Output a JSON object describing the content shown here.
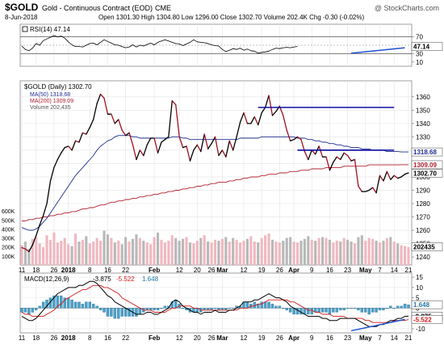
{
  "header": {
    "symbol": "$GOLD",
    "name": "Gold - Continuous Contract (EOD)",
    "exchange": "CME",
    "watermark": "@ StockCharts.com",
    "date": "8-Jun-2018",
    "quote": "Open 1301.30  High 1304.80  Low 1296.00  Close 1302.70  Volume 202.4K  Chg -0.30 (-0.02%)"
  },
  "colors": {
    "price": "#000000",
    "ma50": "#1f2f8f",
    "ma200": "#b0202f",
    "trendline": "#1010a0",
    "rsi": "#000000",
    "macd": "#000000",
    "signal": "#d01818",
    "histogram": "#4aa0c8",
    "volume_up": "#f0b8c0",
    "volume_down": "#b8b8b8",
    "upper_trend": "#2050d0"
  },
  "chart_data": [
    {
      "type": "line",
      "panel": "RSI",
      "legend": "RSI(14) 47.14",
      "ylim": [
        0,
        100
      ],
      "levels": [
        70,
        30
      ],
      "right_ticks": [
        70,
        50,
        30,
        10
      ],
      "last_value": "47.14",
      "values": [
        48,
        40,
        37,
        43,
        54,
        50,
        61,
        65,
        69,
        73,
        70,
        72,
        67,
        58,
        51,
        47,
        47,
        46,
        50,
        54,
        55,
        51,
        57,
        63,
        59,
        55,
        51,
        50,
        47,
        44,
        46,
        51,
        46,
        50,
        48,
        52,
        55,
        51,
        57,
        60,
        63,
        60,
        57,
        54,
        53,
        49,
        53,
        57,
        63,
        58,
        57,
        56,
        54,
        51,
        49,
        48,
        40,
        35,
        38,
        42,
        40,
        43,
        38,
        41,
        37,
        36,
        31,
        33,
        34,
        36,
        40,
        43,
        42,
        44,
        45,
        44,
        46,
        47
      ]
    },
    {
      "type": "line",
      "panel": "Price",
      "legend": {
        "title": "$GOLD (Daily) 1302.70",
        "ma50": "MA(50) 1318.68",
        "ma200": "MA(200) 1309.09",
        "volume": "Volume 202,435"
      },
      "ylim": [
        1234,
        1372
      ],
      "right_ticks": [
        1360,
        1350,
        1340,
        1330,
        1320,
        1310,
        1300,
        1290,
        1280,
        1270,
        1260,
        1250,
        1240
      ],
      "last_labels": {
        "ma50": "1318.68",
        "ma200": "1309.09",
        "close": "1302.70"
      },
      "close": [
        1247,
        1246,
        1244,
        1249,
        1256,
        1264,
        1271,
        1280,
        1297,
        1307,
        1313,
        1318,
        1322,
        1323,
        1320,
        1327,
        1326,
        1333,
        1332,
        1337,
        1343,
        1355,
        1362,
        1359,
        1347,
        1347,
        1340,
        1343,
        1335,
        1331,
        1333,
        1324,
        1313,
        1320,
        1316,
        1324,
        1329,
        1329,
        1318,
        1326,
        1328,
        1330,
        1357,
        1354,
        1330,
        1322,
        1323,
        1312,
        1320,
        1324,
        1319,
        1332,
        1321,
        1325,
        1330,
        1316,
        1320,
        1315,
        1327,
        1320,
        1330,
        1341,
        1348,
        1340,
        1340,
        1345,
        1339,
        1348,
        1352,
        1361,
        1346,
        1349,
        1353,
        1346,
        1335,
        1327,
        1328,
        1330,
        1328,
        1319,
        1313,
        1320,
        1317,
        1323,
        1315,
        1315,
        1305,
        1311,
        1315,
        1313,
        1318,
        1316,
        1312,
        1313,
        1293,
        1289,
        1289,
        1290,
        1292,
        1288,
        1301,
        1297,
        1304,
        1298,
        1301,
        1299,
        1300,
        1302,
        1303
      ],
      "ma50": [
        1262,
        1261,
        1260,
        1260,
        1261,
        1263,
        1266,
        1269,
        1273,
        1277,
        1281,
        1285,
        1289,
        1293,
        1297,
        1301,
        1304,
        1307,
        1310,
        1313,
        1316,
        1320,
        1323,
        1325,
        1327,
        1328,
        1330,
        1331,
        1331,
        1331,
        1331,
        1330,
        1330,
        1329,
        1329,
        1329,
        1329,
        1329,
        1329,
        1329,
        1329,
        1329,
        1330,
        1330,
        1330,
        1329,
        1329,
        1328,
        1328,
        1328,
        1328,
        1328,
        1328,
        1328,
        1328,
        1328,
        1328,
        1328,
        1328,
        1328,
        1328,
        1329,
        1329,
        1329,
        1329,
        1329,
        1329,
        1330,
        1330,
        1330,
        1330,
        1330,
        1330,
        1330,
        1330,
        1330,
        1330,
        1329,
        1329,
        1329,
        1328,
        1328,
        1327,
        1327,
        1326,
        1326,
        1325,
        1325,
        1324,
        1324,
        1323,
        1323,
        1322,
        1322,
        1322,
        1321,
        1321,
        1321,
        1320,
        1320,
        1320,
        1320,
        1319,
        1319,
        1319,
        1319,
        1318.68,
        1318.68,
        1318.68
      ],
      "ma200": [
        1267,
        1267,
        1268,
        1268,
        1269,
        1269,
        1270,
        1270,
        1271,
        1271,
        1272,
        1272,
        1273,
        1273,
        1274,
        1274,
        1275,
        1276,
        1276,
        1277,
        1277,
        1278,
        1279,
        1279,
        1280,
        1281,
        1281,
        1282,
        1282,
        1283,
        1283,
        1284,
        1284,
        1285,
        1285,
        1286,
        1286,
        1287,
        1287,
        1288,
        1288,
        1289,
        1289,
        1290,
        1290,
        1291,
        1291,
        1292,
        1292,
        1293,
        1293,
        1294,
        1294,
        1295,
        1295,
        1296,
        1296,
        1296,
        1297,
        1297,
        1298,
        1298,
        1299,
        1299,
        1300,
        1300,
        1300,
        1301,
        1301,
        1302,
        1302,
        1302,
        1303,
        1303,
        1303,
        1304,
        1304,
        1304,
        1305,
        1305,
        1305,
        1306,
        1306,
        1306,
        1306,
        1307,
        1307,
        1307,
        1307,
        1307,
        1308,
        1308,
        1308,
        1308,
        1308,
        1308,
        1308,
        1309,
        1309,
        1309,
        1309,
        1309,
        1309,
        1309,
        1309,
        1309,
        1309.09,
        1309.09,
        1309.09
      ],
      "resistance_lines": [
        {
          "from_index": 66,
          "to_index": 104,
          "y": 1352
        },
        {
          "from_index": 77,
          "to_index": 101,
          "y": 1320
        },
        {
          "from_index": 77,
          "to_index": 104,
          "y": 1320
        }
      ]
    },
    {
      "type": "bar",
      "panel": "Volume",
      "ylim": [
        0,
        700
      ],
      "right_ticks": [
        600,
        500,
        400,
        300,
        200,
        100
      ],
      "tick_labels": [
        "600K",
        "500K",
        "400K",
        "300K",
        "200K",
        "100K"
      ],
      "last_value": "202435",
      "values": [
        220,
        260,
        180,
        290,
        310,
        240,
        200,
        330,
        280,
        360,
        250,
        270,
        300,
        230,
        210,
        350,
        260,
        280,
        320,
        240,
        260,
        300,
        270,
        380,
        340,
        300,
        250,
        270,
        230,
        310,
        260,
        290,
        340,
        300,
        270,
        250,
        230,
        310,
        360,
        280,
        250,
        270,
        330,
        300,
        270,
        290,
        310,
        250,
        240,
        270,
        300,
        330,
        260,
        250,
        280,
        270,
        290,
        310,
        260,
        300,
        280,
        250,
        270,
        290,
        320,
        260,
        250,
        300,
        330,
        350,
        280,
        260,
        250,
        270,
        300,
        310,
        260,
        250,
        270,
        290,
        320,
        280,
        270,
        300,
        310,
        300,
        280,
        250,
        270,
        260,
        300,
        280,
        260,
        240,
        310,
        330,
        270,
        300,
        290,
        270,
        250,
        270,
        300,
        310,
        260,
        240,
        220,
        210,
        200
      ],
      "up_flags_note": "colored by close change"
    },
    {
      "type": "line",
      "panel": "MACD",
      "legend": {
        "label": "MACD(12,26,9)",
        "macd": "-3.875",
        "signal": "-5.522",
        "hist": "1.648"
      },
      "ylim": [
        -12,
        17
      ],
      "right_ticks": [
        15,
        10,
        5,
        0,
        -5,
        -10
      ],
      "last_labels": {
        "hist": "1.648",
        "macd": "-3.875",
        "signal": "-5.522"
      },
      "macd": [
        -4,
        -5,
        -6,
        -6,
        -5,
        -3,
        -1,
        1,
        3,
        5,
        7,
        8,
        9,
        10,
        10,
        10,
        11,
        11,
        12,
        13,
        13,
        12,
        10,
        8,
        6,
        5,
        3,
        2,
        1,
        0,
        -1,
        -2,
        -3,
        -3,
        -3,
        -2,
        -2,
        -3,
        -3,
        -2,
        -1,
        0,
        3,
        4,
        3,
        1,
        0,
        -1,
        -2,
        -2,
        -3,
        -2,
        -2,
        -2,
        -1,
        -2,
        -2,
        -2,
        -1,
        -1,
        0,
        1,
        3,
        3,
        3,
        4,
        4,
        5,
        6,
        7,
        6,
        5,
        5,
        4,
        3,
        1,
        0,
        -1,
        -2,
        -3,
        -4,
        -4,
        -4,
        -4,
        -5,
        -5,
        -6,
        -6,
        -6,
        -5,
        -5,
        -5,
        -5,
        -5,
        -6,
        -7,
        -8,
        -9,
        -9,
        -9,
        -8,
        -8,
        -7,
        -6,
        -6,
        -5,
        -5,
        -4,
        -3.875
      ],
      "signal": [
        -2,
        -3,
        -3,
        -4,
        -4,
        -4,
        -4,
        -3,
        -2,
        -1,
        1,
        2,
        4,
        5,
        6,
        7,
        8,
        9,
        9,
        10,
        11,
        11,
        11,
        10,
        10,
        9,
        8,
        7,
        5,
        4,
        3,
        2,
        1,
        0,
        -1,
        -1,
        -1,
        -2,
        -2,
        -2,
        -2,
        -1,
        0,
        0,
        1,
        1,
        1,
        1,
        0,
        0,
        -1,
        -1,
        -1,
        -1,
        -1,
        -1,
        -1,
        -1,
        -1,
        -1,
        -1,
        0,
        0,
        0,
        1,
        1,
        2,
        2,
        3,
        4,
        4,
        4,
        4,
        4,
        4,
        3,
        3,
        2,
        1,
        0,
        -1,
        -1,
        -2,
        -2,
        -3,
        -3,
        -3,
        -4,
        -4,
        -4,
        -4,
        -5,
        -5,
        -5,
        -5,
        -5,
        -6,
        -6,
        -7,
        -7,
        -7,
        -7,
        -7,
        -7,
        -6,
        -6,
        -6,
        -6,
        -5.522
      ]
    }
  ],
  "x_axis": {
    "labels": [
      {
        "i": 0,
        "t": "11"
      },
      {
        "i": 4,
        "t": "18"
      },
      {
        "i": 9,
        "t": "26"
      },
      {
        "i": 13,
        "t": "2018"
      },
      {
        "i": 19,
        "t": "8"
      },
      {
        "i": 24,
        "t": "16"
      },
      {
        "i": 29,
        "t": "22"
      },
      {
        "i": 37,
        "t": "Feb"
      },
      {
        "i": 44,
        "t": "12"
      },
      {
        "i": 49,
        "t": "20"
      },
      {
        "i": 53,
        "t": "26"
      },
      {
        "i": 56,
        "t": "Mar"
      },
      {
        "i": 62,
        "t": "12"
      },
      {
        "i": 67,
        "t": "19"
      },
      {
        "i": 72,
        "t": "26"
      },
      {
        "i": 76,
        "t": "Apr"
      },
      {
        "i": 81,
        "t": "9"
      },
      {
        "i": 86,
        "t": "16"
      },
      {
        "i": 91,
        "t": "23"
      },
      {
        "i": 96,
        "t": "May"
      },
      {
        "i": 100,
        "t": "7"
      },
      {
        "i": 104,
        "t": "14"
      },
      {
        "i": 108,
        "t": "21"
      }
    ]
  }
}
